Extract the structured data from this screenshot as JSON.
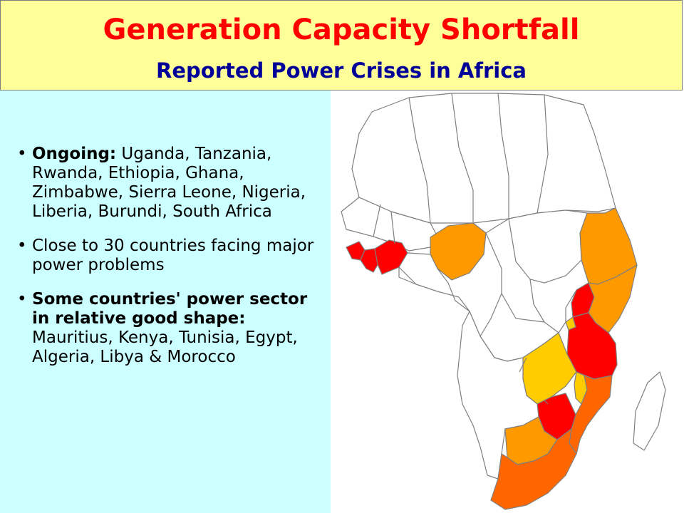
{
  "header": {
    "title": "Generation Capacity Shortfall",
    "subtitle": "Reported Power Crises in Africa"
  },
  "bullets": [
    {
      "lead": "Ongoing:",
      "text": " Uganda, Tanzania, Rwanda, Ethiopia, Ghana, Zimbabwe, Sierra Leone, Nigeria, Liberia, Burundi, South Africa",
      "lead_bold": true,
      "text_bold": false
    },
    {
      "lead": "",
      "text": "Close to 30 countries facing major power problems",
      "lead_bold": false,
      "text_bold": false
    },
    {
      "lead": "Some countries' power sector in relative good shape:",
      "text": " Mauritius, Kenya, Tunisia, Egypt, Algeria, Libya & Morocco",
      "lead_bold": true,
      "text_bold": false
    }
  ],
  "map": {
    "colors": {
      "none": "#ffffff",
      "red": "#ff0000",
      "orange": "#ff9900",
      "dark_orange": "#ff6600",
      "yellow": "#ffcc00",
      "border": "#7f7f7f"
    },
    "regions": [
      {
        "name": "north-africa",
        "fill": "none"
      },
      {
        "name": "sahel-west",
        "fill": "none"
      },
      {
        "name": "sierra-leone",
        "fill": "red"
      },
      {
        "name": "liberia",
        "fill": "red"
      },
      {
        "name": "ghana",
        "fill": "red"
      },
      {
        "name": "nigeria",
        "fill": "orange"
      },
      {
        "name": "ethiopia",
        "fill": "orange"
      },
      {
        "name": "uganda",
        "fill": "red"
      },
      {
        "name": "kenya",
        "fill": "orange"
      },
      {
        "name": "rwanda",
        "fill": "yellow"
      },
      {
        "name": "tanzania",
        "fill": "red"
      },
      {
        "name": "malawi",
        "fill": "yellow"
      },
      {
        "name": "zambia",
        "fill": "yellow"
      },
      {
        "name": "mozambique",
        "fill": "dark_orange"
      },
      {
        "name": "zimbabwe",
        "fill": "red"
      },
      {
        "name": "botswana",
        "fill": "orange"
      },
      {
        "name": "south-africa",
        "fill": "dark_orange"
      },
      {
        "name": "central-africa",
        "fill": "none"
      },
      {
        "name": "southern-west",
        "fill": "none"
      },
      {
        "name": "madagascar",
        "fill": "none"
      }
    ]
  }
}
